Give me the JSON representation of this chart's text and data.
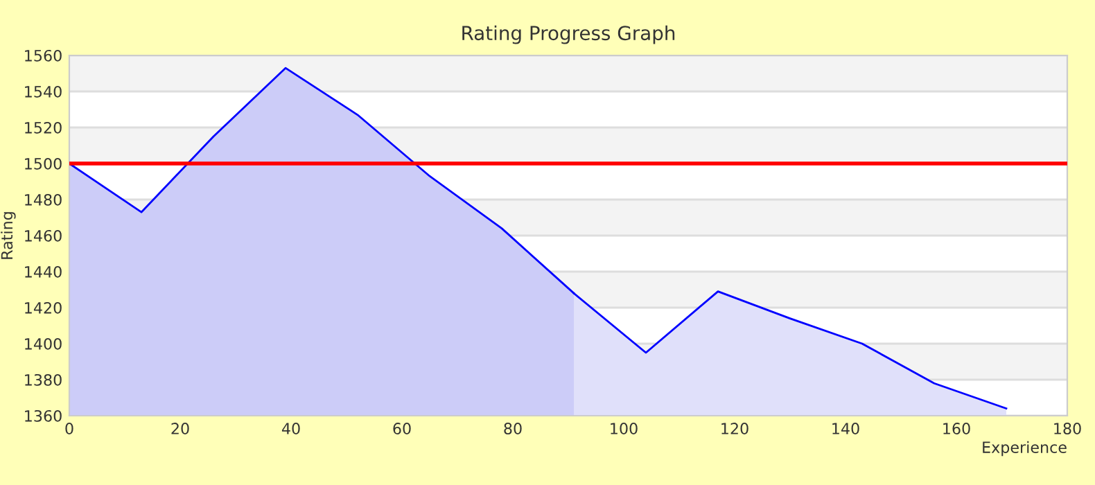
{
  "chart_data": {
    "type": "area",
    "title": "Rating Progress Graph",
    "xlabel": "Experience",
    "ylabel": "Rating",
    "series": [
      {
        "color": "#ccccf8",
        "x": [
          0,
          13,
          26,
          39,
          52,
          65,
          78,
          91
        ],
        "values": [
          1500,
          1473,
          1515,
          1553,
          1527,
          1493,
          1464,
          1428
        ]
      },
      {
        "color": "#e0e0fa",
        "x": [
          91,
          104,
          117,
          130,
          143,
          156,
          169
        ],
        "values": [
          1428,
          1395,
          1429,
          1414,
          1400,
          1378,
          1364
        ]
      }
    ],
    "xlim": [
      0,
      180
    ],
    "xticks": [
      0,
      20,
      40,
      60,
      80,
      100,
      120,
      140,
      160,
      180
    ],
    "ylim": [
      1360,
      1560
    ],
    "yticks": [
      1360,
      1380,
      1400,
      1420,
      1440,
      1460,
      1480,
      1500,
      1520,
      1540,
      1560
    ],
    "grid": "y",
    "legend": false,
    "ref_lines": [
      {
        "axis": "y",
        "value": 1500,
        "color": "#ff0000"
      }
    ]
  }
}
